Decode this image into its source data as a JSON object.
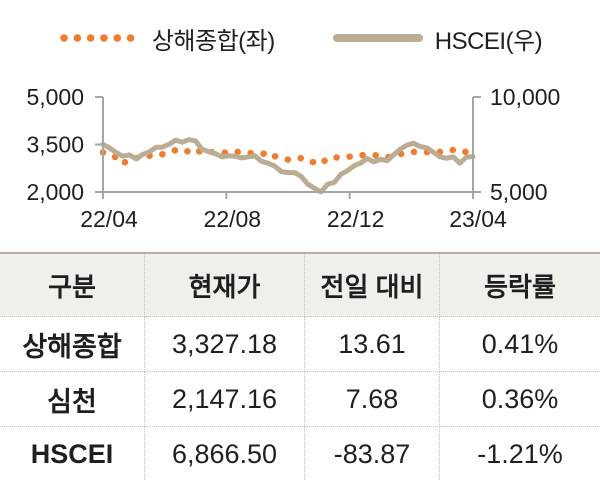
{
  "colors": {
    "shanghai_orange": "#ED7D31",
    "hscei_tan": "#BBAD93",
    "axis_grey": "#A6A6A6",
    "text": "#1f1f1f",
    "header_bg": "#f2efea",
    "border_dotted": "#c9c4bb"
  },
  "chart_data": {
    "type": "line",
    "title": "",
    "x_ticklabels": [
      "22/04",
      "22/08",
      "22/12",
      "23/04"
    ],
    "left_axis": {
      "label": "상해종합(좌)",
      "min": 2000,
      "max": 5000,
      "ticklabels": [
        "5,000",
        "3,500",
        "2,000"
      ]
    },
    "right_axis": {
      "label": "HSCEI(우)",
      "min": 5000,
      "max": 10000,
      "ticklabels": [
        "10,000",
        "5,000"
      ]
    },
    "grid": false,
    "legend_position": "top-center",
    "series": [
      {
        "name": "상해종합(좌)",
        "axis": "left",
        "style": "dotted",
        "color": "#ED7D31",
        "values": [
          3250,
          3212,
          3087,
          2886,
          3047,
          3075,
          3084,
          3147,
          3130,
          3195,
          3284,
          3316,
          3350,
          3266,
          3356,
          3228,
          3269,
          3250,
          3253,
          3227,
          3276,
          3258,
          3236,
          3220,
          3186,
          3262,
          3126,
          3088,
          3024,
          3024,
          3072,
          3038,
          2915,
          2886,
          3070,
          3087,
          3097,
          3102,
          3149,
          3156,
          3180,
          3168,
          3130,
          3089,
          3157,
          3195,
          3265,
          3265,
          3263,
          3260,
          3224,
          3267,
          3280,
          3328,
          3251,
          3273,
          3327
        ]
      },
      {
        "name": "HSCEI(우)",
        "axis": "right",
        "style": "solid",
        "color": "#BBAD93",
        "values": [
          7513,
          7320,
          7075,
          6884,
          6951,
          6746,
          6972,
          7113,
          7350,
          7363,
          7518,
          7729,
          7620,
          7759,
          7691,
          7251,
          7119,
          7021,
          6848,
          6911,
          6878,
          6793,
          6851,
          6898,
          6610,
          6510,
          6364,
          6066,
          6019,
          6019,
          5820,
          5410,
          5198,
          5005,
          5404,
          5506,
          5929,
          6123,
          6386,
          6526,
          6763,
          6585,
          6720,
          6649,
          6956,
          7260,
          7466,
          7563,
          7396,
          7320,
          7095,
          6852,
          6772,
          6852,
          6515,
          6833,
          6866
        ]
      }
    ]
  },
  "table": {
    "headers": [
      "구분",
      "현재가",
      "전일 대비",
      "등락률"
    ],
    "rows": [
      {
        "label": "상해종합",
        "price": "3,327.18",
        "change": "13.61",
        "pct": "0.41%"
      },
      {
        "label": "심천",
        "price": "2,147.16",
        "change": "7.68",
        "pct": "0.36%"
      },
      {
        "label": "HSCEI",
        "price": "6,866.50",
        "change": "-83.87",
        "pct": "-1.21%"
      }
    ]
  }
}
